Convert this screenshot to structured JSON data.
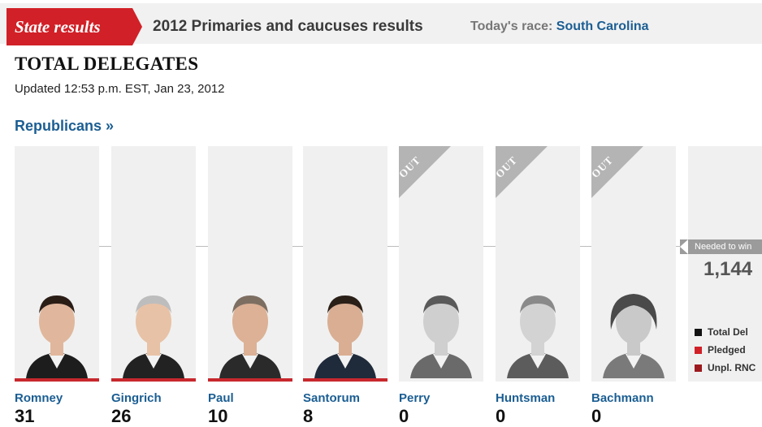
{
  "header": {
    "tab_label": "State results",
    "title": "2012 Primaries and caucuses results",
    "today_label": "Today's race:",
    "today_race": "South Carolina"
  },
  "page": {
    "title": "TOTAL DELEGATES",
    "updated": "Updated 12:53 p.m. EST, Jan 23, 2012",
    "party_link": "Republicans »"
  },
  "candidates": [
    {
      "name": "Romney",
      "delegates": "31",
      "out": false,
      "out_label": ""
    },
    {
      "name": "Gingrich",
      "delegates": "26",
      "out": false,
      "out_label": ""
    },
    {
      "name": "Paul",
      "delegates": "10",
      "out": false,
      "out_label": ""
    },
    {
      "name": "Santorum",
      "delegates": "8",
      "out": false,
      "out_label": ""
    },
    {
      "name": "Perry",
      "delegates": "0",
      "out": true,
      "out_label": "OUT"
    },
    {
      "name": "Huntsman",
      "delegates": "0",
      "out": true,
      "out_label": "OUT"
    },
    {
      "name": "Bachmann",
      "delegates": "0",
      "out": true,
      "out_label": "OUT"
    }
  ],
  "needed": {
    "label": "Needed to win",
    "value": "1,144"
  },
  "legend": [
    {
      "label": "Total Del",
      "color": "#111111"
    },
    {
      "label": "Pledged",
      "color": "#d12027"
    },
    {
      "label": "Unpl. RNC",
      "color": "#9c1a1f"
    }
  ],
  "colors": {
    "accent": "#d12027",
    "link": "#1b5e93",
    "out_tag": "#b4b4b4"
  }
}
